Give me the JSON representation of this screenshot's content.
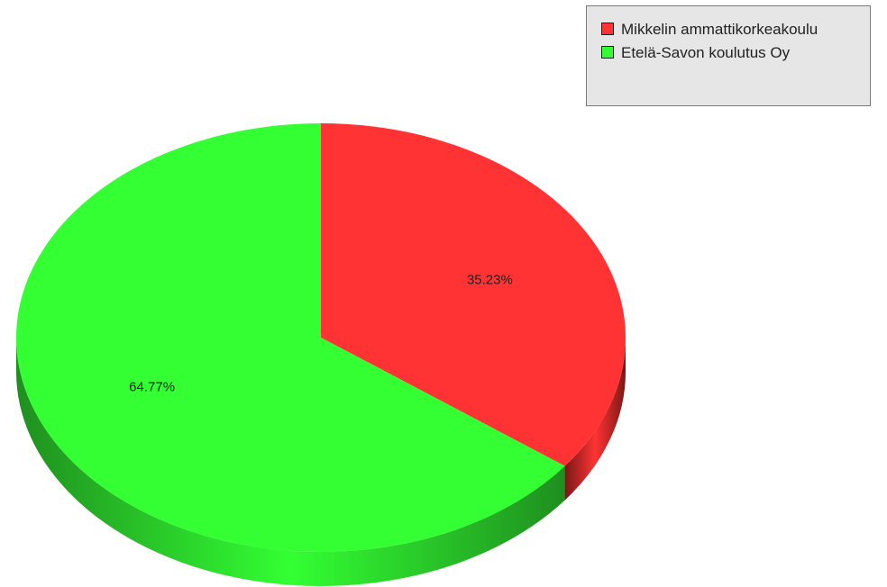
{
  "chart_data": {
    "type": "pie",
    "style": "3d",
    "slices": [
      {
        "name": "Mikkelin ammattikorkeakoulu",
        "value": 35.23,
        "label": "35.23%",
        "color": "#ff3333",
        "side_color": "#7a1717"
      },
      {
        "name": "Etelä-Savon koulutus Oy",
        "value": 64.77,
        "label": "64.77%",
        "color": "#33ff33",
        "side_color": "#1f8f1f"
      }
    ],
    "legend": {
      "position": "top-right",
      "items": [
        {
          "label": "Mikkelin ammattikorkeakoulu",
          "color": "#ff3333"
        },
        {
          "label": "Etelä-Savon koulutus Oy",
          "color": "#33ff33"
        }
      ]
    }
  }
}
